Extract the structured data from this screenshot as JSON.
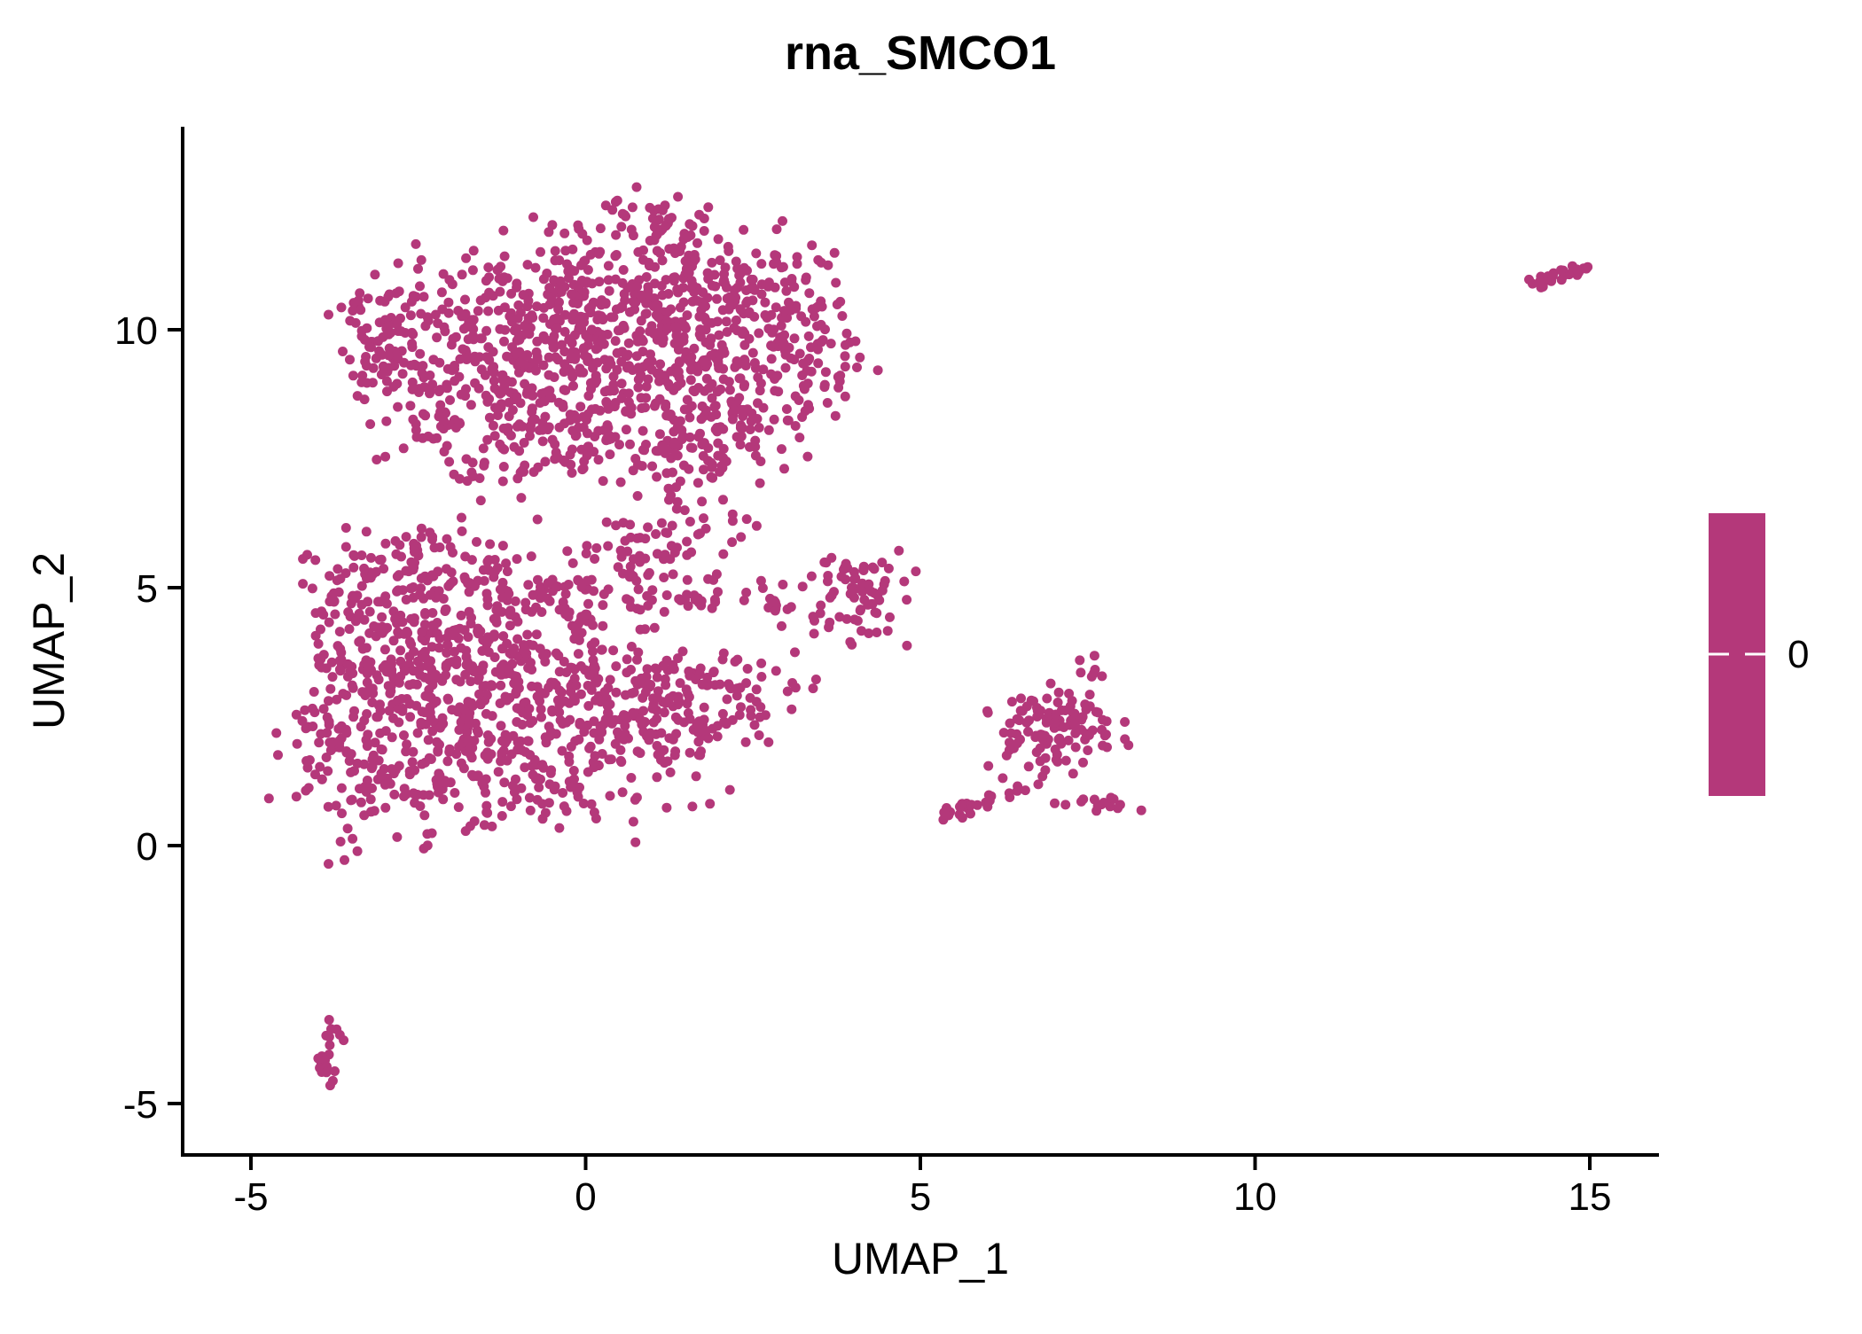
{
  "figure": {
    "title": "rna_SMCO1",
    "background_color": "#FFFFFF",
    "axis_color": "#000000",
    "text_color": "#000000"
  },
  "chart_data": {
    "type": "scatter",
    "title": "rna_SMCO1",
    "xlabel": "UMAP_1",
    "ylabel": "UMAP_2",
    "xlim": [
      -6,
      16
    ],
    "ylim": [
      -6,
      13.9
    ],
    "x_ticks": [
      -5,
      0,
      5,
      10,
      15
    ],
    "y_ticks": [
      -5,
      0,
      5,
      10
    ],
    "grid": false,
    "point_color": "#B4387A",
    "point_radius_px": 5.5,
    "legend": {
      "type": "colorbar",
      "position": "right",
      "color": "#B4387A",
      "tick_label": "0",
      "tick_color": "#FFFFFF"
    },
    "clusters": [
      {
        "name": "upper-left-blob",
        "components": [
          {
            "type": "gauss",
            "x": -1.9,
            "y": 9.5,
            "sx": 0.85,
            "sy": 0.95,
            "n": 150
          },
          {
            "type": "gauss",
            "x": -0.6,
            "y": 10.2,
            "sx": 1.0,
            "sy": 0.85,
            "n": 190
          },
          {
            "type": "gauss",
            "x": 0.9,
            "y": 10.7,
            "sx": 0.9,
            "sy": 0.8,
            "n": 190
          },
          {
            "type": "gauss",
            "x": 1.9,
            "y": 9.7,
            "sx": 0.9,
            "sy": 0.85,
            "n": 150
          },
          {
            "type": "gauss",
            "x": 0.2,
            "y": 8.8,
            "sx": 1.4,
            "sy": 0.75,
            "n": 190
          },
          {
            "type": "gauss",
            "x": 1.6,
            "y": 7.9,
            "sx": 0.8,
            "sy": 0.6,
            "n": 110
          },
          {
            "type": "gauss",
            "x": -1.0,
            "y": 7.9,
            "sx": 0.95,
            "sy": 0.55,
            "n": 80
          },
          {
            "type": "gauss",
            "x": 3.3,
            "y": 9.4,
            "sx": 0.55,
            "sy": 0.55,
            "n": 65
          },
          {
            "type": "gauss",
            "x": 2.4,
            "y": 11.0,
            "sx": 0.6,
            "sy": 0.55,
            "n": 60
          },
          {
            "type": "gauss",
            "x": 1.1,
            "y": 12.1,
            "sx": 0.4,
            "sy": 0.35,
            "n": 30
          },
          {
            "type": "gauss",
            "x": -3.0,
            "y": 9.8,
            "sx": 0.35,
            "sy": 0.6,
            "n": 60
          }
        ]
      },
      {
        "name": "lower-left-blob",
        "components": [
          {
            "type": "gauss",
            "x": -3.0,
            "y": 3.1,
            "sx": 0.75,
            "sy": 1.3,
            "n": 200
          },
          {
            "type": "gauss",
            "x": -1.8,
            "y": 3.5,
            "sx": 0.95,
            "sy": 1.05,
            "n": 200
          },
          {
            "type": "gauss",
            "x": -0.5,
            "y": 2.9,
            "sx": 1.05,
            "sy": 0.95,
            "n": 200
          },
          {
            "type": "gauss",
            "x": 0.8,
            "y": 2.4,
            "sx": 0.95,
            "sy": 0.75,
            "n": 140
          },
          {
            "type": "gauss",
            "x": -1.6,
            "y": 1.2,
            "sx": 1.2,
            "sy": 0.55,
            "n": 120
          },
          {
            "type": "gauss",
            "x": -3.75,
            "y": 1.6,
            "sx": 0.3,
            "sy": 0.9,
            "n": 55
          },
          {
            "type": "gauss",
            "x": -3.5,
            "y": 4.7,
            "sx": 0.45,
            "sy": 0.65,
            "n": 55
          },
          {
            "type": "gauss",
            "x": 2.0,
            "y": 2.9,
            "sx": 0.65,
            "sy": 0.5,
            "n": 65
          },
          {
            "type": "gauss",
            "x": -0.2,
            "y": 4.9,
            "sx": 1.1,
            "sy": 0.45,
            "n": 85
          },
          {
            "type": "gauss",
            "x": 0.7,
            "y": 5.8,
            "sx": 0.75,
            "sy": 0.4,
            "n": 45
          },
          {
            "type": "gauss",
            "x": -2.3,
            "y": 5.5,
            "sx": 0.65,
            "sy": 0.45,
            "n": 55
          },
          {
            "type": "gauss",
            "x": 1.8,
            "y": 4.75,
            "sx": 0.45,
            "sy": 0.07,
            "n": 14
          },
          {
            "type": "gauss",
            "x": 2.7,
            "y": 4.55,
            "sx": 0.35,
            "sy": 0.22,
            "n": 8
          },
          {
            "type": "gauss",
            "x": 1.3,
            "y": 6.6,
            "sx": 0.3,
            "sy": 0.25,
            "n": 10
          },
          {
            "type": "gauss",
            "x": 2.2,
            "y": 6.0,
            "sx": 0.35,
            "sy": 0.3,
            "n": 6
          }
        ]
      },
      {
        "name": "mid-small-cluster",
        "components": [
          {
            "type": "gauss",
            "x": 4.05,
            "y": 4.9,
            "sx": 0.42,
            "sy": 0.48,
            "n": 72
          },
          {
            "type": "gauss",
            "x": 3.0,
            "y": 4.65,
            "sx": 0.3,
            "sy": 0.25,
            "n": 6
          }
        ]
      },
      {
        "name": "mid-right-cluster",
        "components": [
          {
            "type": "gauss",
            "x": 7.1,
            "y": 2.3,
            "sx": 0.5,
            "sy": 0.38,
            "n": 105
          },
          {
            "type": "line",
            "x1": 5.45,
            "y1": 0.55,
            "x2": 6.45,
            "y2": 1.15,
            "jitter": 0.09,
            "n": 26
          },
          {
            "type": "gauss",
            "x": 7.6,
            "y": 0.82,
            "sx": 0.3,
            "sy": 0.1,
            "n": 15
          },
          {
            "type": "gauss",
            "x": 7.55,
            "y": 3.5,
            "sx": 0.12,
            "sy": 0.2,
            "n": 7
          },
          {
            "type": "gauss",
            "x": 6.4,
            "y": 1.7,
            "sx": 0.28,
            "sy": 0.28,
            "n": 12
          }
        ]
      },
      {
        "name": "bottom-left-tiny-cluster",
        "components": [
          {
            "type": "line",
            "x1": -3.7,
            "y1": -3.25,
            "x2": -3.95,
            "y2": -4.35,
            "jitter": 0.08,
            "n": 15
          },
          {
            "type": "gauss",
            "x": -3.85,
            "y": -4.5,
            "sx": 0.09,
            "sy": 0.13,
            "n": 6
          }
        ]
      },
      {
        "name": "top-right-cluster",
        "components": [
          {
            "type": "line",
            "x1": 14.05,
            "y1": 10.85,
            "x2": 14.95,
            "y2": 11.15,
            "jitter": 0.08,
            "n": 24
          },
          {
            "type": "gauss",
            "x": 14.9,
            "y": 11.2,
            "sx": 0.1,
            "sy": 0.08,
            "n": 4
          }
        ]
      }
    ]
  }
}
